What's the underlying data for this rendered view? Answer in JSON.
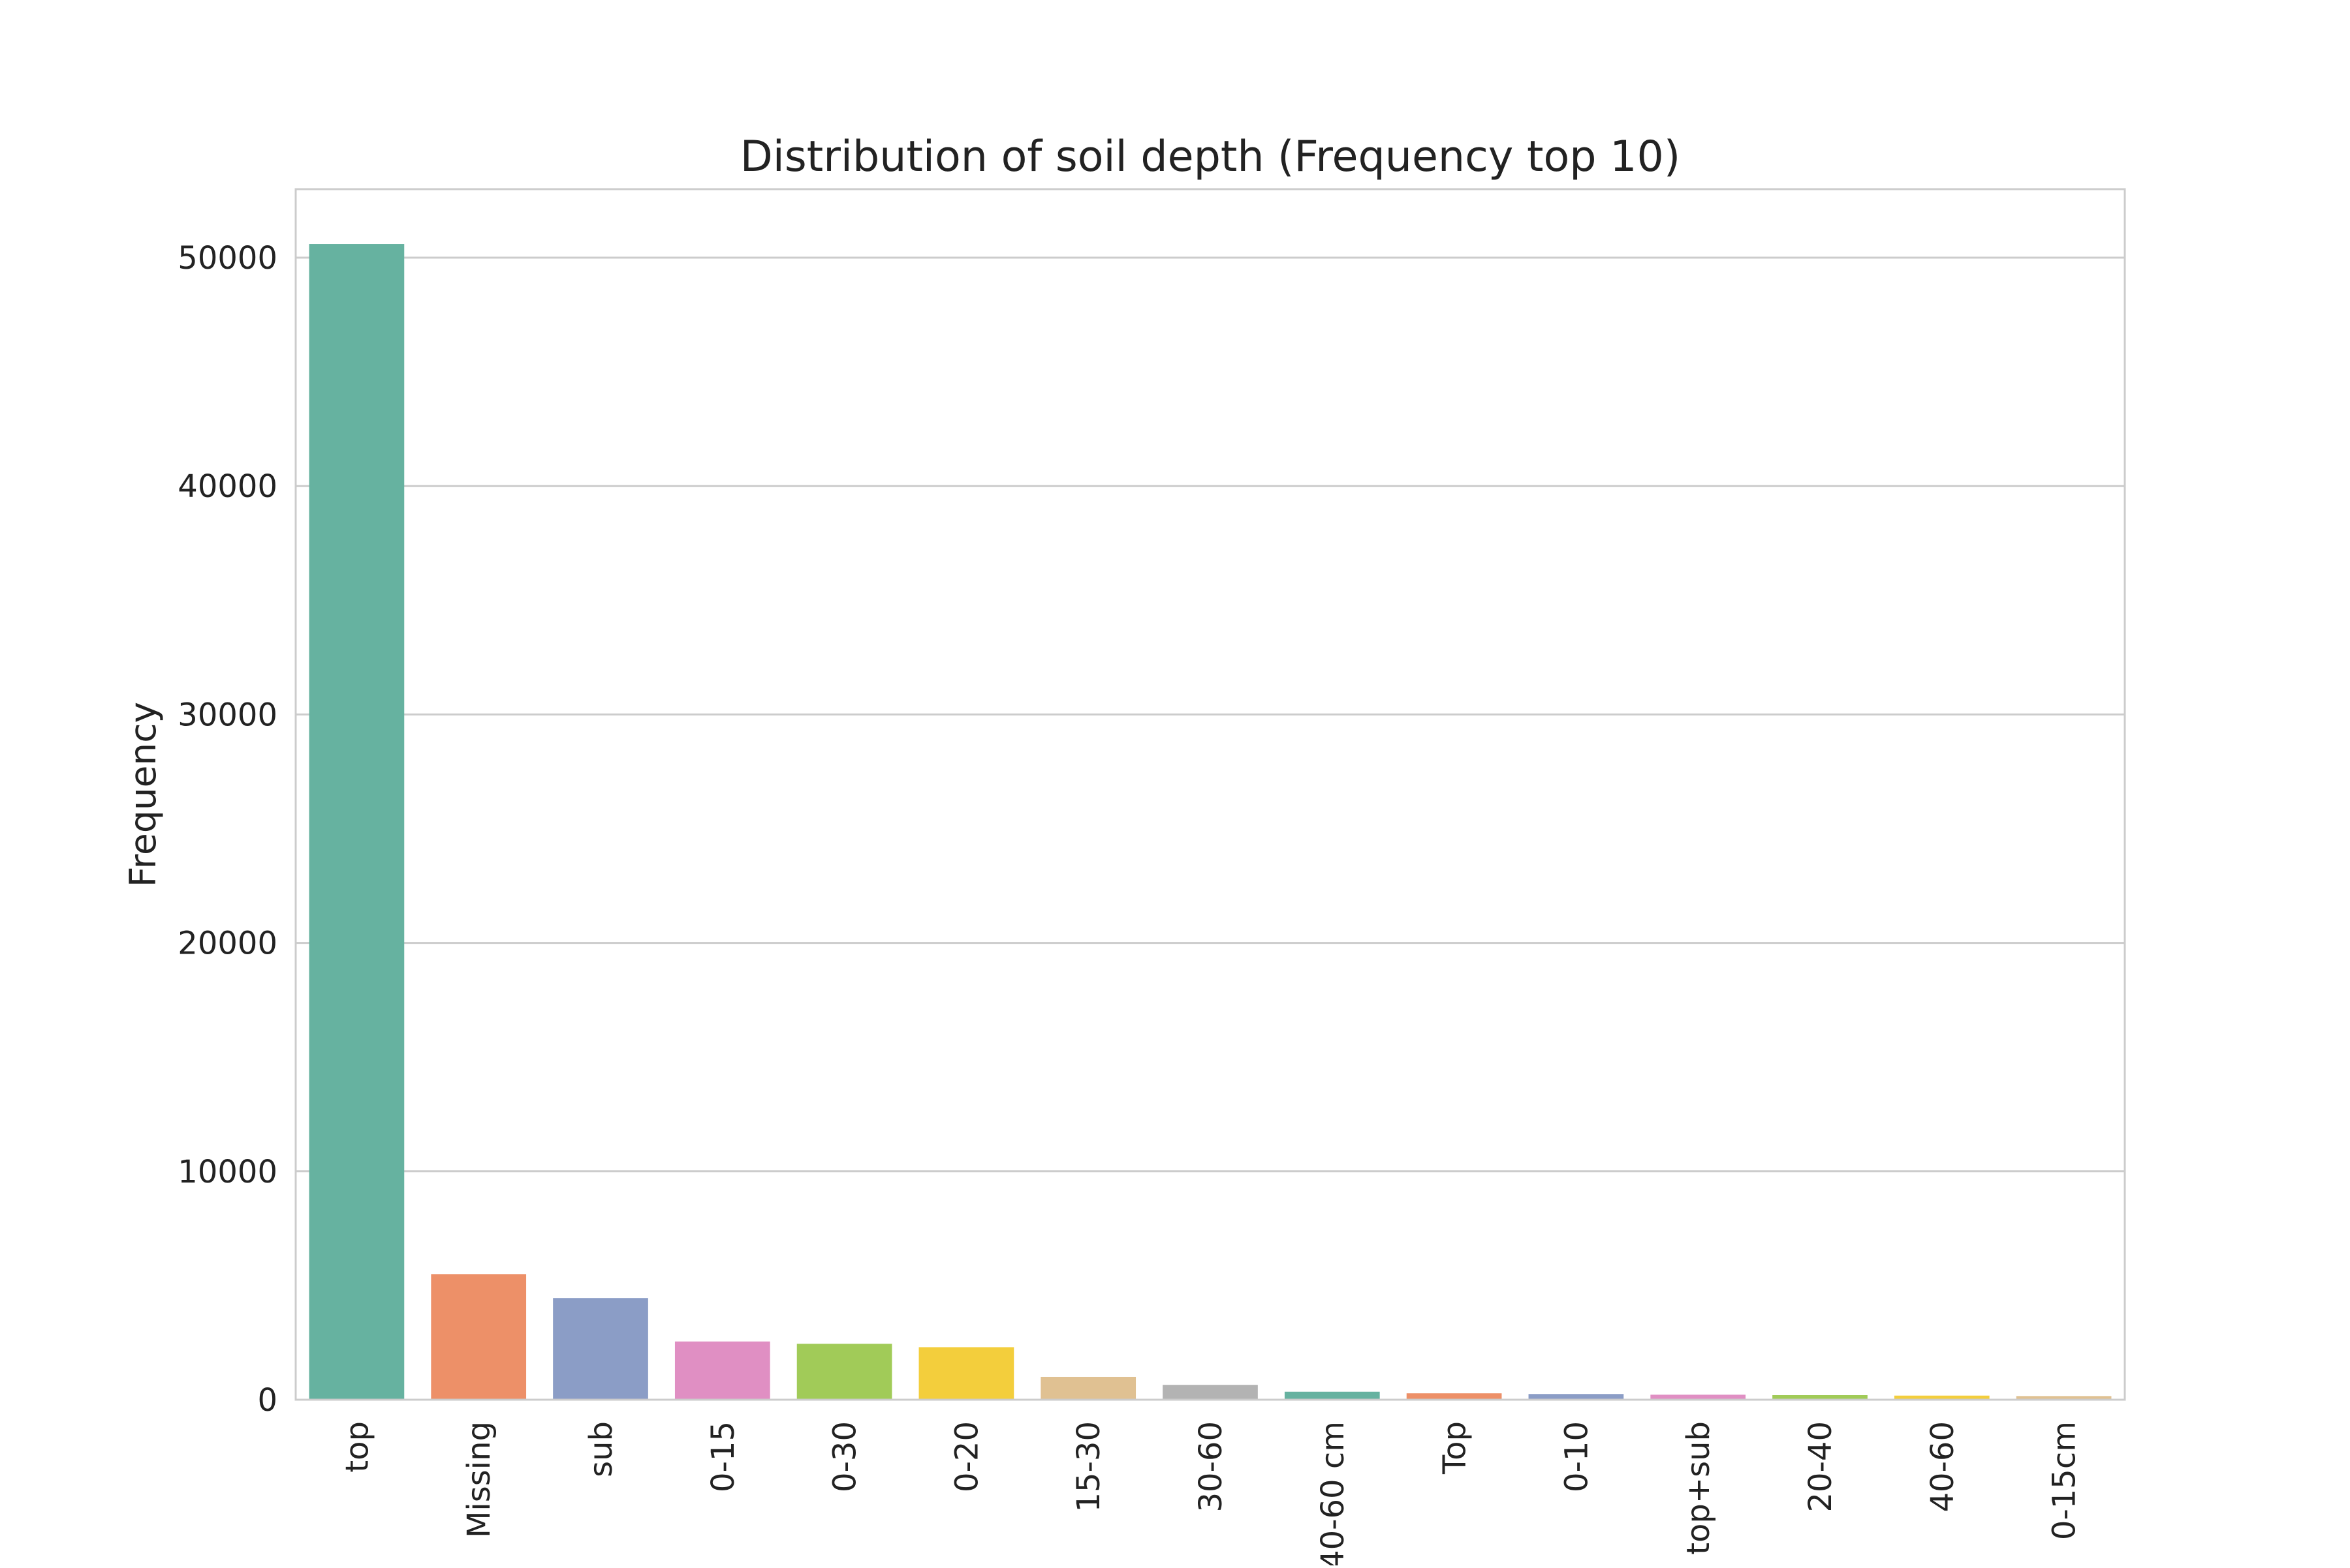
{
  "chart_data": {
    "type": "bar",
    "title": "Distribution of soil depth (Frequency top 10)",
    "xlabel": "",
    "ylabel": "Frequency",
    "categories": [
      "top",
      "Missing",
      "sub",
      "0-15",
      "0-30",
      "0-20",
      "15-30",
      "30-60",
      "40-60 cm",
      "Top",
      "0-10",
      "top+sub",
      "20-40",
      "40-60",
      "0-15cm"
    ],
    "values": [
      50600,
      5500,
      4450,
      2550,
      2450,
      2300,
      1000,
      650,
      350,
      280,
      250,
      220,
      200,
      180,
      160
    ],
    "colors": [
      "#66b2a0",
      "#ed9068",
      "#8b9dc6",
      "#e08fc3",
      "#a1cb58",
      "#f3ce3c",
      "#e0c192",
      "#b3b3b3",
      "#66b2a0",
      "#ed9068",
      "#8b9dc6",
      "#e08fc3",
      "#a1cb58",
      "#f3ce3c",
      "#e0c192"
    ],
    "ylim": [
      0,
      53000
    ],
    "yticks": [
      0,
      10000,
      20000,
      30000,
      40000,
      50000
    ],
    "grid": true,
    "legend": "none"
  }
}
